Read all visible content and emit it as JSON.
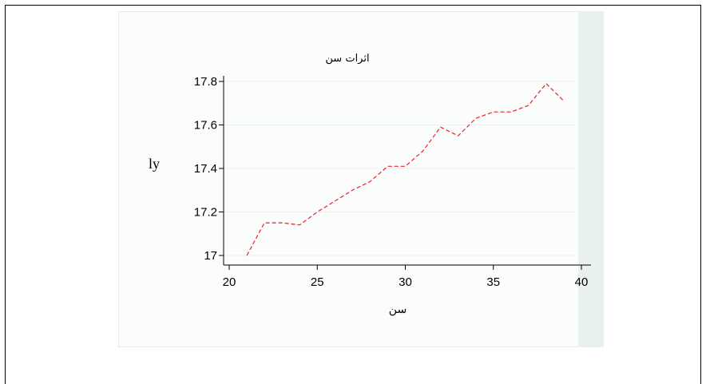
{
  "chart_data": {
    "type": "line",
    "title": "اثرات سن",
    "xlabel": "سن",
    "ylabel": "ly",
    "xlim": [
      20,
      40
    ],
    "ylim": [
      17,
      17.8
    ],
    "xticks": [
      20,
      25,
      30,
      35,
      40
    ],
    "yticks": [
      17,
      17.2,
      17.4,
      17.6,
      17.8
    ],
    "ytick_labels": [
      "17",
      "17.2",
      "17.4",
      "17.6",
      "17.8"
    ],
    "grid": "horizontal",
    "line_style": "dashed",
    "series": [
      {
        "color": "#e8202a",
        "x": [
          21,
          22,
          23,
          24,
          25,
          26,
          27,
          28,
          29,
          30,
          31,
          32,
          33,
          34,
          35,
          36,
          37,
          38,
          39
        ],
        "y": [
          17.0,
          17.15,
          17.15,
          17.14,
          17.2,
          17.25,
          17.3,
          17.34,
          17.41,
          17.41,
          17.48,
          17.59,
          17.55,
          17.63,
          17.66,
          17.66,
          17.69,
          17.79,
          17.71
        ]
      }
    ]
  }
}
